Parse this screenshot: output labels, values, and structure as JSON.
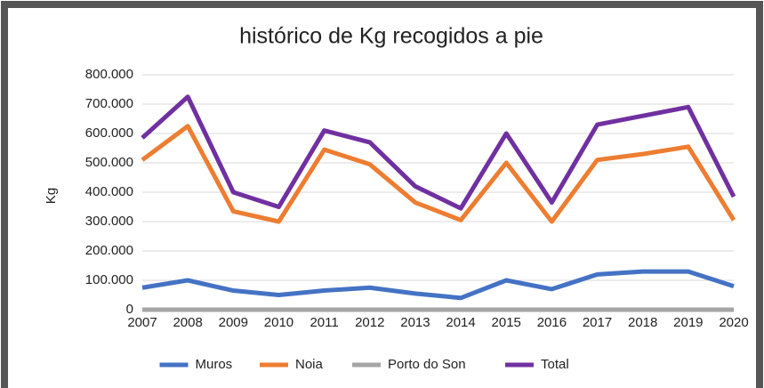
{
  "chart_data": {
    "type": "line",
    "title": "histórico de Kg recogidos a pie",
    "ylabel": "Kg",
    "x": [
      2007,
      2008,
      2009,
      2010,
      2011,
      2012,
      2013,
      2014,
      2015,
      2016,
      2017,
      2018,
      2019,
      2020
    ],
    "xlim": [
      2007,
      2020
    ],
    "xticks": [
      2007,
      2008,
      2009,
      2010,
      2011,
      2012,
      2013,
      2014,
      2015,
      2016,
      2017,
      2018,
      2019,
      2020
    ],
    "ylim": [
      0,
      800000
    ],
    "yticks": [
      0,
      {
        "value": 100000,
        "label": "100.000"
      },
      {
        "value": 200000,
        "label": "200.000"
      },
      {
        "value": 300000,
        "label": "300.000"
      },
      {
        "value": 400000,
        "label": "400.000"
      },
      {
        "value": 500000,
        "label": "500.000"
      },
      {
        "value": 600000,
        "label": "600.000"
      },
      {
        "value": 700000,
        "label": "700.000"
      },
      {
        "value": 800000,
        "label": "800.000"
      }
    ],
    "grid": true,
    "legend": "bottom",
    "series": [
      {
        "name": "Muros",
        "color": "#4472c4",
        "values": [
          75000,
          100000,
          65000,
          50000,
          65000,
          75000,
          55000,
          40000,
          100000,
          70000,
          120000,
          130000,
          130000,
          80000
        ]
      },
      {
        "name": "Noia",
        "color": "#ed7d31",
        "values": [
          510000,
          625000,
          335000,
          300000,
          545000,
          495000,
          365000,
          305000,
          500000,
          300000,
          510000,
          530000,
          555000,
          305000
        ]
      },
      {
        "name": "Porto do Son",
        "color": "#a5a5a5",
        "values": [
          0,
          0,
          0,
          0,
          0,
          0,
          0,
          0,
          0,
          0,
          0,
          0,
          0,
          0
        ]
      },
      {
        "name": "Total",
        "color": "#7030a0",
        "values": [
          585000,
          725000,
          400000,
          350000,
          610000,
          570000,
          420000,
          345000,
          600000,
          365000,
          630000,
          660000,
          690000,
          385000
        ]
      }
    ]
  }
}
